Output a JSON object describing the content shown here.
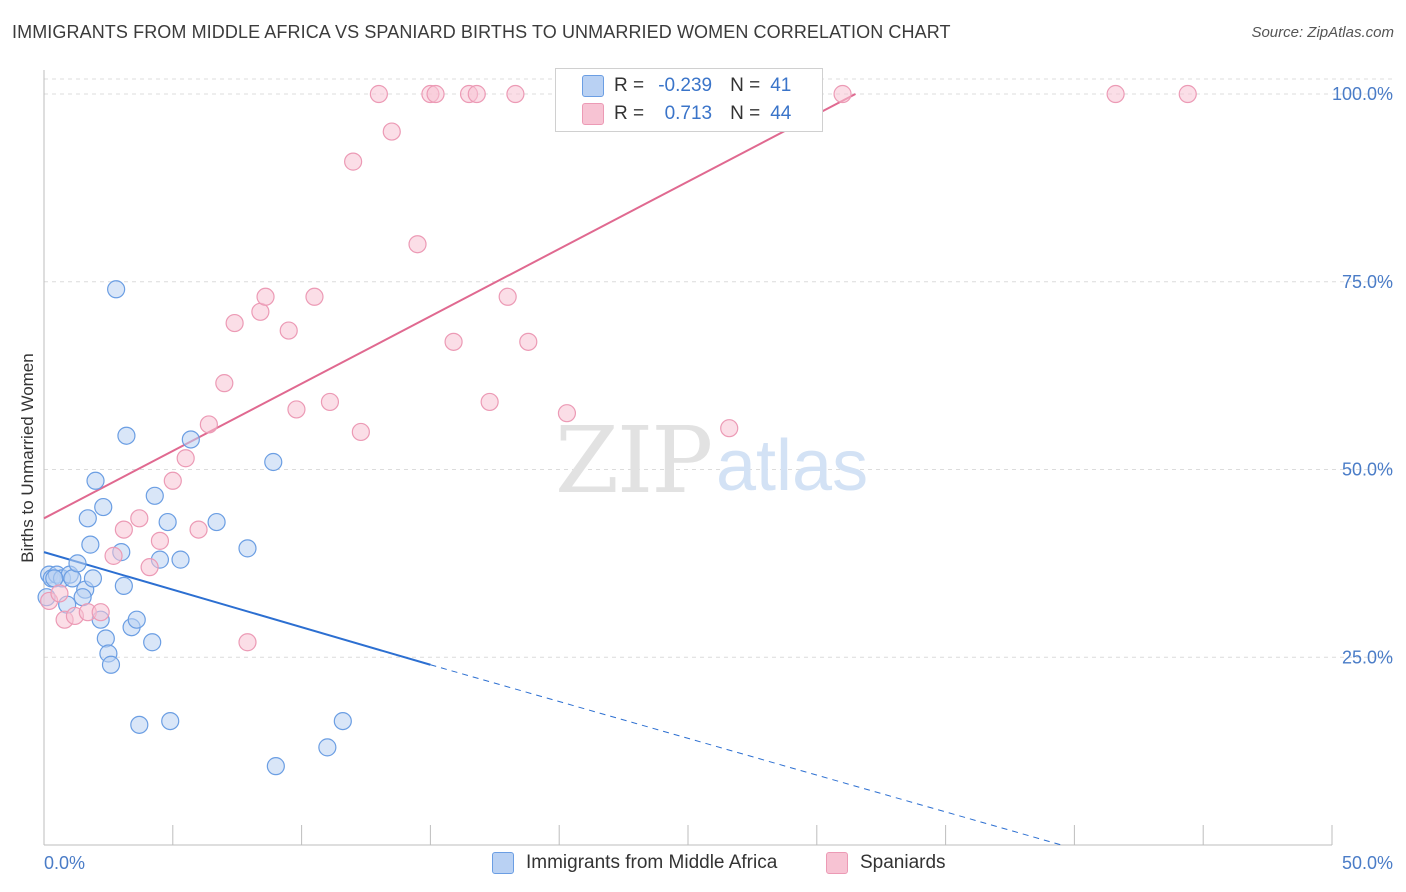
{
  "header": {
    "title": "IMMIGRANTS FROM MIDDLE AFRICA VS SPANIARD BIRTHS TO UNMARRIED WOMEN CORRELATION CHART",
    "source": "Source: ZipAtlas.com"
  },
  "watermark": {
    "zip": "ZIP",
    "atlas": "atlas"
  },
  "legend": {
    "rows": [
      {
        "r_label": "R =",
        "r_value": "-0.239",
        "n_label": "N =",
        "n_value": "41"
      },
      {
        "r_label": "R =",
        "r_value": "0.713",
        "n_label": "N =",
        "n_value": "44"
      }
    ]
  },
  "bottom_legend": {
    "series1": "Immigrants from Middle Africa",
    "series2": "Spaniards"
  },
  "colors": {
    "blue_fill": "#b9d1f3",
    "blue_stroke": "#6b9ee3",
    "blue_line": "#2c6fd1",
    "pink_fill": "#f7c3d3",
    "pink_stroke": "#ec9ab5",
    "pink_line": "#e06990",
    "tick_text": "#4a7cc7",
    "grid": "#dcdcdc"
  },
  "chart_data": {
    "type": "scatter",
    "title": "IMMIGRANTS FROM MIDDLE AFRICA VS SPANIARD BIRTHS TO UNMARRIED WOMEN CORRELATION CHART",
    "xlabel": "",
    "ylabel": "Births to Unmarried Women",
    "xlim": [
      0,
      50
    ],
    "ylim": [
      0,
      102
    ],
    "x_tick_labels": [
      "0.0%",
      "50.0%"
    ],
    "y_ticks": [
      25,
      50,
      75,
      100
    ],
    "y_tick_labels": [
      "25.0%",
      "50.0%",
      "75.0%",
      "100.0%"
    ],
    "grid": true,
    "legend_position": "top-center",
    "series": [
      {
        "name": "Immigrants from Middle Africa",
        "color": "#6b9ee3",
        "points": [
          [
            0.1,
            33
          ],
          [
            0.2,
            36
          ],
          [
            0.3,
            35.5
          ],
          [
            0.5,
            36
          ],
          [
            0.7,
            35.5
          ],
          [
            0.9,
            32
          ],
          [
            1.0,
            36
          ],
          [
            1.1,
            35.5
          ],
          [
            1.3,
            37.5
          ],
          [
            1.6,
            34
          ],
          [
            1.7,
            43.5
          ],
          [
            1.8,
            40
          ],
          [
            1.9,
            35.5
          ],
          [
            2.0,
            48.5
          ],
          [
            2.2,
            30
          ],
          [
            2.3,
            45
          ],
          [
            2.4,
            27.5
          ],
          [
            2.5,
            25.5
          ],
          [
            2.6,
            24
          ],
          [
            2.8,
            74
          ],
          [
            3.0,
            39
          ],
          [
            3.1,
            34.5
          ],
          [
            3.2,
            54.5
          ],
          [
            3.4,
            29
          ],
          [
            3.6,
            30
          ],
          [
            3.7,
            16
          ],
          [
            4.2,
            27
          ],
          [
            4.3,
            46.5
          ],
          [
            4.5,
            38
          ],
          [
            4.8,
            43
          ],
          [
            4.9,
            16.5
          ],
          [
            5.3,
            38
          ],
          [
            5.7,
            54
          ],
          [
            6.7,
            43
          ],
          [
            7.9,
            39.5
          ],
          [
            8.9,
            51
          ],
          [
            9.0,
            10.5
          ],
          [
            11.0,
            13
          ],
          [
            11.6,
            16.5
          ],
          [
            0.4,
            35.5
          ],
          [
            1.5,
            33
          ]
        ]
      },
      {
        "name": "Spaniards",
        "color": "#ec9ab5",
        "points": [
          [
            0.2,
            32.5
          ],
          [
            0.6,
            33.5
          ],
          [
            0.8,
            30
          ],
          [
            1.2,
            30.5
          ],
          [
            1.7,
            31
          ],
          [
            2.2,
            31
          ],
          [
            2.7,
            38.5
          ],
          [
            3.1,
            42
          ],
          [
            3.7,
            43.5
          ],
          [
            4.1,
            37
          ],
          [
            4.5,
            40.5
          ],
          [
            5.0,
            48.5
          ],
          [
            5.5,
            51.5
          ],
          [
            6.0,
            42
          ],
          [
            6.4,
            56
          ],
          [
            7.0,
            61.5
          ],
          [
            7.4,
            69.5
          ],
          [
            7.9,
            27
          ],
          [
            8.4,
            71
          ],
          [
            8.6,
            73
          ],
          [
            9.5,
            68.5
          ],
          [
            9.8,
            58
          ],
          [
            10.5,
            73
          ],
          [
            11.1,
            59
          ],
          [
            12.0,
            91
          ],
          [
            12.3,
            55
          ],
          [
            13.0,
            100
          ],
          [
            13.5,
            95
          ],
          [
            14.5,
            80
          ],
          [
            15.0,
            100
          ],
          [
            15.2,
            100
          ],
          [
            15.9,
            67
          ],
          [
            16.5,
            100
          ],
          [
            16.8,
            100
          ],
          [
            17.3,
            59
          ],
          [
            18.0,
            73
          ],
          [
            18.3,
            100
          ],
          [
            18.8,
            67
          ],
          [
            20.3,
            57.5
          ],
          [
            23.4,
            100
          ],
          [
            26.6,
            55.5
          ],
          [
            31.0,
            100
          ],
          [
            41.6,
            100
          ],
          [
            44.4,
            100
          ]
        ]
      }
    ],
    "trendlines": [
      {
        "series": "Immigrants from Middle Africa",
        "x": [
          0,
          15
        ],
        "y": [
          39,
          24
        ],
        "extended_x": [
          15,
          39.5
        ],
        "extended_y": [
          24,
          0
        ]
      },
      {
        "series": "Spaniards",
        "x": [
          0,
          31.5
        ],
        "y": [
          43.5,
          100
        ]
      }
    ]
  }
}
